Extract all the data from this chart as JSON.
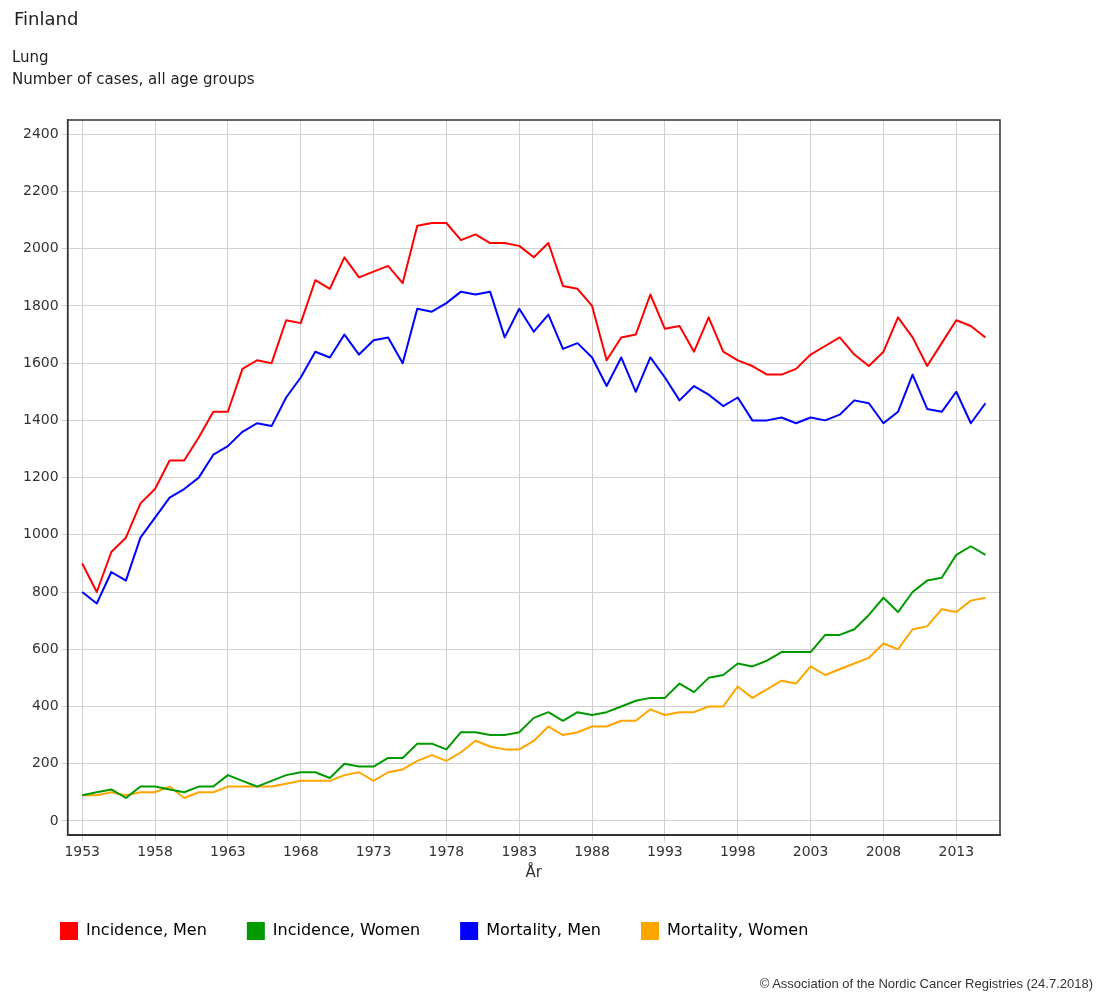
{
  "chart_data": {
    "type": "line",
    "title": "Finland",
    "subtitle": "Lung\nNumber of cases, all age groups",
    "xlabel": "År",
    "x": [
      1953,
      1954,
      1955,
      1956,
      1957,
      1958,
      1959,
      1960,
      1961,
      1962,
      1963,
      1964,
      1965,
      1966,
      1967,
      1968,
      1969,
      1970,
      1971,
      1972,
      1973,
      1974,
      1975,
      1976,
      1977,
      1978,
      1979,
      1980,
      1981,
      1982,
      1983,
      1984,
      1985,
      1986,
      1987,
      1988,
      1989,
      1990,
      1991,
      1992,
      1993,
      1994,
      1995,
      1996,
      1997,
      1998,
      1999,
      2000,
      2001,
      2002,
      2003,
      2004,
      2005,
      2006,
      2007,
      2008,
      2009,
      2010,
      2011,
      2012,
      2013,
      2014,
      2015
    ],
    "series": [
      {
        "name": "Incidence, Men",
        "color": "#ff0000",
        "values": [
          900,
          800,
          940,
          990,
          1110,
          1160,
          1260,
          1260,
          1340,
          1430,
          1430,
          1580,
          1610,
          1600,
          1750,
          1740,
          1890,
          1860,
          1970,
          1900,
          1920,
          1940,
          1880,
          2080,
          2090,
          2090,
          2030,
          2050,
          2020,
          2020,
          2010,
          1970,
          2020,
          1870,
          1860,
          1800,
          1610,
          1690,
          1700,
          1840,
          1720,
          1730,
          1640,
          1760,
          1640,
          1610,
          1590,
          1560,
          1560,
          1580,
          1630,
          1660,
          1690,
          1630,
          1590,
          1640,
          1760,
          1690,
          1590,
          1670,
          1750,
          1730,
          1690
        ]
      },
      {
        "name": "Incidence, Women",
        "color": "#009900",
        "values": [
          90,
          100,
          110,
          80,
          120,
          120,
          110,
          100,
          120,
          120,
          160,
          140,
          120,
          140,
          160,
          170,
          170,
          150,
          200,
          190,
          190,
          220,
          220,
          270,
          270,
          250,
          310,
          310,
          300,
          300,
          310,
          360,
          380,
          350,
          380,
          370,
          380,
          400,
          420,
          430,
          430,
          480,
          450,
          500,
          510,
          550,
          540,
          560,
          590,
          590,
          590,
          650,
          650,
          670,
          720,
          780,
          730,
          800,
          840,
          850,
          930,
          960,
          930
        ]
      },
      {
        "name": "Mortality, Men",
        "color": "#0000ff",
        "values": [
          800,
          760,
          870,
          840,
          990,
          1060,
          1130,
          1160,
          1200,
          1280,
          1310,
          1360,
          1390,
          1380,
          1480,
          1550,
          1640,
          1620,
          1700,
          1630,
          1680,
          1690,
          1600,
          1790,
          1780,
          1810,
          1850,
          1840,
          1850,
          1690,
          1790,
          1710,
          1770,
          1650,
          1670,
          1620,
          1520,
          1620,
          1500,
          1620,
          1550,
          1470,
          1520,
          1490,
          1450,
          1480,
          1400,
          1400,
          1410,
          1390,
          1410,
          1400,
          1420,
          1470,
          1460,
          1390,
          1430,
          1560,
          1440,
          1430,
          1500,
          1390,
          1460
        ]
      },
      {
        "name": "Mortality, Women",
        "color": "#ffa500",
        "values": [
          90,
          90,
          100,
          90,
          100,
          100,
          120,
          80,
          100,
          100,
          120,
          120,
          120,
          120,
          130,
          140,
          140,
          140,
          160,
          170,
          140,
          170,
          180,
          210,
          230,
          210,
          240,
          280,
          260,
          250,
          250,
          280,
          330,
          300,
          310,
          330,
          330,
          350,
          350,
          390,
          370,
          380,
          380,
          400,
          400,
          470,
          430,
          460,
          490,
          480,
          540,
          510,
          530,
          550,
          570,
          620,
          600,
          670,
          680,
          740,
          730,
          770,
          780
        ]
      }
    ],
    "xlim": [
      1952,
      2016
    ],
    "xticks": [
      1953,
      1958,
      1963,
      1968,
      1973,
      1978,
      1983,
      1988,
      1993,
      1998,
      2003,
      2008,
      2013
    ],
    "ylim": [
      -50,
      2450
    ],
    "yticks": [
      0,
      200,
      400,
      600,
      800,
      1000,
      1200,
      1400,
      1600,
      1800,
      2000,
      2200,
      2400
    ],
    "grid": true,
    "legend": "bottom",
    "marker": "none",
    "line_style": "solid",
    "annotations": [
      "© Association of the Nordic Cancer Registries (24.7.2018)"
    ]
  }
}
